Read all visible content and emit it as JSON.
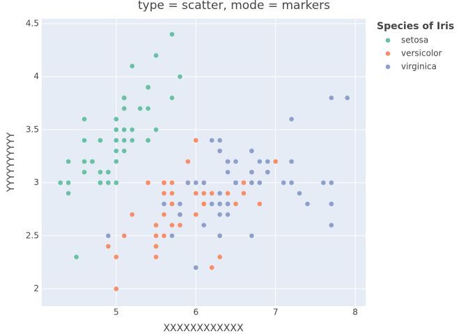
{
  "chart_data": {
    "type": "scatter",
    "title": "type = scatter, mode = markers",
    "x_label": "XXXXXXXXXXXX",
    "y_label": "YYYYYYYYYY",
    "legend_title": "Species of Iris",
    "xlim": [
      4.066,
      8.13
    ],
    "ylim": [
      1.836,
      4.546
    ],
    "xticks": [
      5,
      6,
      7,
      8
    ],
    "yticks": [
      2,
      2.5,
      3,
      3.5,
      4,
      4.5
    ],
    "grid": true,
    "legend_position": "right",
    "series": [
      {
        "name": "setosa",
        "color": "#66c2a5",
        "x": [
          5.1,
          4.9,
          4.7,
          4.6,
          5.0,
          5.4,
          4.6,
          5.0,
          4.4,
          4.9,
          5.4,
          4.8,
          4.8,
          4.3,
          5.8,
          5.7,
          5.4,
          5.1,
          5.7,
          5.1,
          5.4,
          5.1,
          4.6,
          5.1,
          4.8,
          5.0,
          5.0,
          5.2,
          5.2,
          4.7,
          4.8,
          5.4,
          5.2,
          5.5,
          4.9,
          5.0,
          5.5,
          4.9,
          4.4,
          5.1,
          5.0,
          4.5,
          4.4,
          5.0,
          5.1,
          4.8,
          5.1,
          4.6,
          5.3,
          5.0
        ],
        "values": [
          3.5,
          3.0,
          3.2,
          3.1,
          3.6,
          3.9,
          3.4,
          3.4,
          2.9,
          3.1,
          3.7,
          3.4,
          3.0,
          3.0,
          4.0,
          4.4,
          3.9,
          3.5,
          3.8,
          3.8,
          3.4,
          3.7,
          3.6,
          3.3,
          3.4,
          3.0,
          3.4,
          3.5,
          3.4,
          3.2,
          3.1,
          3.4,
          4.1,
          4.2,
          3.1,
          3.2,
          3.5,
          3.1,
          3.0,
          3.4,
          3.5,
          2.3,
          3.2,
          3.5,
          3.8,
          3.0,
          3.8,
          3.2,
          3.7,
          3.3
        ]
      },
      {
        "name": "versicolor",
        "color": "#fc8d62",
        "x": [
          7.0,
          6.4,
          6.9,
          5.5,
          6.5,
          5.7,
          6.3,
          4.9,
          6.6,
          5.2,
          5.0,
          5.9,
          6.0,
          6.1,
          5.6,
          6.7,
          5.6,
          5.8,
          6.2,
          5.6,
          5.9,
          6.1,
          6.3,
          6.1,
          6.4,
          6.6,
          6.8,
          6.7,
          6.0,
          5.7,
          5.5,
          5.5,
          5.8,
          6.0,
          5.4,
          6.0,
          6.7,
          6.3,
          5.6,
          5.5,
          5.5,
          6.1,
          5.8,
          5.0,
          5.6,
          5.7,
          5.7,
          6.2,
          5.1,
          5.7
        ],
        "values": [
          3.2,
          3.2,
          3.1,
          2.3,
          2.8,
          2.8,
          3.3,
          2.4,
          2.9,
          2.7,
          2.0,
          3.0,
          2.2,
          2.9,
          2.9,
          3.1,
          3.0,
          2.7,
          2.2,
          2.5,
          3.2,
          2.8,
          2.5,
          2.8,
          2.9,
          3.0,
          2.8,
          3.0,
          2.9,
          2.6,
          2.4,
          2.4,
          2.7,
          2.7,
          3.0,
          3.4,
          3.1,
          2.3,
          3.0,
          2.5,
          2.6,
          3.0,
          2.6,
          2.3,
          2.7,
          3.0,
          2.9,
          2.9,
          2.5,
          2.8
        ]
      },
      {
        "name": "virginica",
        "color": "#8da0cb",
        "x": [
          6.3,
          5.8,
          7.1,
          6.3,
          6.5,
          7.6,
          4.9,
          7.3,
          6.7,
          7.2,
          6.5,
          6.4,
          6.8,
          5.7,
          5.8,
          6.4,
          6.5,
          7.7,
          7.7,
          6.0,
          6.9,
          5.6,
          7.7,
          6.3,
          6.7,
          7.2,
          6.2,
          6.1,
          6.4,
          7.2,
          7.4,
          7.9,
          6.4,
          6.3,
          6.1,
          7.7,
          6.3,
          6.4,
          6.0,
          6.9,
          6.7,
          6.9,
          5.8,
          6.8,
          6.7,
          6.7,
          6.3,
          6.5,
          6.2,
          5.9
        ],
        "values": [
          3.3,
          2.7,
          3.0,
          2.9,
          3.0,
          3.0,
          2.5,
          2.9,
          2.5,
          3.6,
          3.2,
          2.7,
          3.0,
          2.5,
          2.8,
          3.2,
          3.0,
          3.8,
          2.6,
          2.2,
          3.2,
          2.8,
          2.8,
          2.7,
          3.3,
          3.2,
          2.8,
          3.0,
          2.8,
          3.0,
          2.8,
          3.8,
          2.8,
          2.8,
          2.6,
          3.0,
          3.4,
          3.1,
          3.0,
          3.1,
          3.1,
          3.1,
          2.7,
          3.2,
          3.3,
          3.0,
          2.5,
          3.0,
          3.4,
          3.0
        ]
      }
    ]
  }
}
